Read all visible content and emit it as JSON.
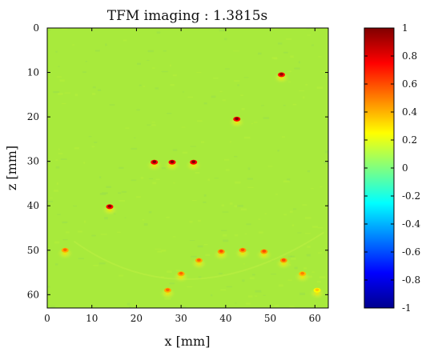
{
  "chart_data": {
    "type": "heatmap",
    "title": "TFM imaging : 1.3815s",
    "xlabel": "x [mm]",
    "ylabel": "z [mm]",
    "xlim": [
      0,
      63
    ],
    "ylim": [
      0,
      63
    ],
    "y_axis_direction": "down",
    "x_ticks": [
      0,
      10,
      20,
      30,
      40,
      50,
      60
    ],
    "y_ticks": [
      0,
      10,
      20,
      30,
      40,
      50,
      60
    ],
    "colormap": "jet",
    "clim": [
      -1,
      1
    ],
    "colorbar_ticks": [
      1,
      0.8,
      0.6,
      0.4,
      0.2,
      0,
      -0.2,
      -0.4,
      -0.6,
      -0.8,
      -1
    ],
    "background_value": 0.1,
    "reflectors": [
      {
        "x": 52.5,
        "z": 10.5,
        "amplitude": 0.95
      },
      {
        "x": 42.5,
        "z": 20.5,
        "amplitude": 1.0
      },
      {
        "x": 24.0,
        "z": 30.2,
        "amplitude": 1.0
      },
      {
        "x": 28.0,
        "z": 30.2,
        "amplitude": 1.0
      },
      {
        "x": 32.8,
        "z": 30.2,
        "amplitude": 1.0
      },
      {
        "x": 14.0,
        "z": 40.2,
        "amplitude": 1.0
      },
      {
        "x": 4.0,
        "z": 50.0,
        "amplitude": 0.55
      },
      {
        "x": 39.0,
        "z": 50.3,
        "amplitude": 0.6
      },
      {
        "x": 43.8,
        "z": 50.0,
        "amplitude": 0.6
      },
      {
        "x": 48.6,
        "z": 50.3,
        "amplitude": 0.6
      },
      {
        "x": 34.0,
        "z": 52.3,
        "amplitude": 0.55
      },
      {
        "x": 53.0,
        "z": 52.3,
        "amplitude": 0.6
      },
      {
        "x": 30.0,
        "z": 55.3,
        "amplitude": 0.55
      },
      {
        "x": 57.2,
        "z": 55.3,
        "amplitude": 0.5
      },
      {
        "x": 27.0,
        "z": 59.0,
        "amplitude": 0.55
      },
      {
        "x": 60.5,
        "z": 59.0,
        "amplitude": 0.35
      }
    ],
    "colors": {
      "background": "#a8ea3c",
      "frame": "#000000"
    }
  }
}
